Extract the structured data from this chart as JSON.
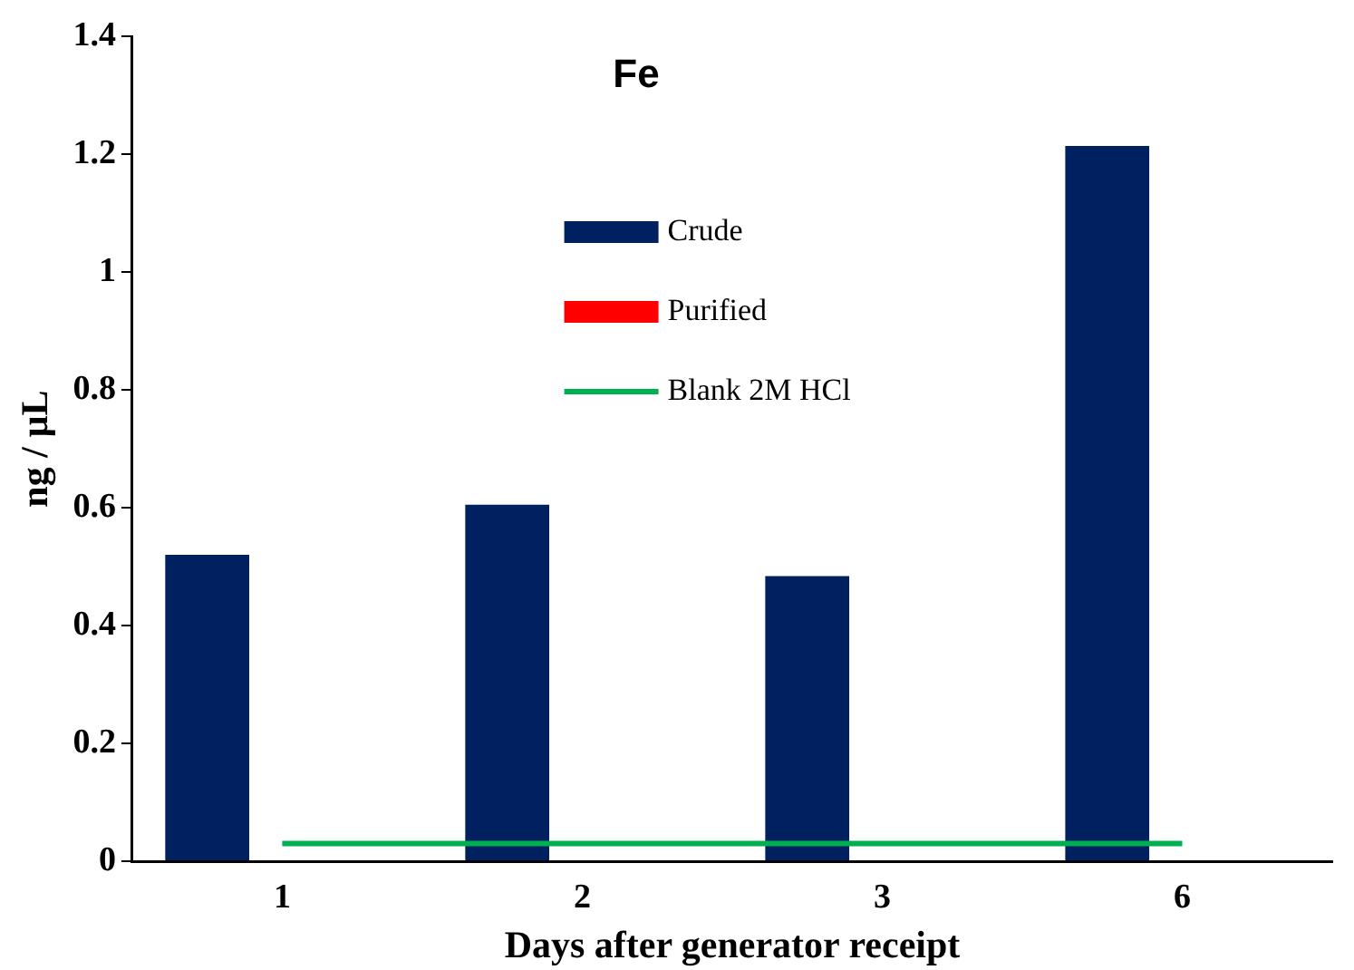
{
  "chart_data": {
    "type": "bar",
    "title": "Fe",
    "xlabel": "Days after generator receipt",
    "ylabel": "ng / µL",
    "categories": [
      "1",
      "2",
      "3",
      "6"
    ],
    "series": [
      {
        "name": "Crude",
        "color": "#002060",
        "values": [
          0.52,
          0.605,
          0.484,
          1.214
        ]
      },
      {
        "name": "Purified",
        "color": "#ff0000",
        "values": [
          0,
          0,
          0,
          0
        ]
      },
      {
        "name": "Blank 2M HCl",
        "type": "line",
        "color": "#00b050",
        "values": [
          0.03,
          0.03,
          0.03,
          0.03
        ]
      }
    ],
    "ylim": [
      0,
      1.4
    ],
    "yticks": [
      0,
      0.2,
      0.4,
      0.6,
      0.8,
      1,
      1.2,
      1.4
    ],
    "grid": false,
    "legend": "top",
    "marker": "none"
  }
}
